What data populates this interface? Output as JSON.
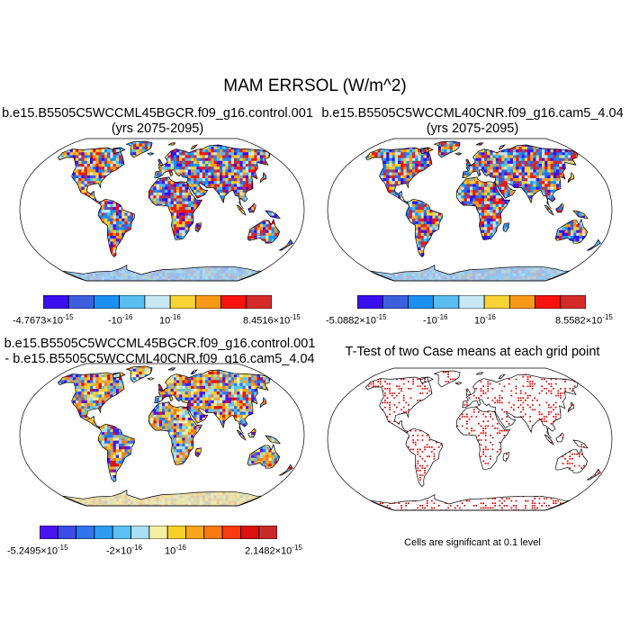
{
  "figure_title": "MAM ERRSOL (W/m^2)",
  "panels": [
    {
      "title_line1": "b.e15.B5505C5WCCML45BGCR.f09_g16.control.001",
      "title_line2": "(yrs 2075-2095)",
      "colorbar": {
        "colors": [
          "#3a0ff0",
          "#3b5fdd",
          "#1a90f2",
          "#59bdf0",
          "#c8e8f5",
          "#f7d335",
          "#f79a1a",
          "#f7120e",
          "#d42a2a"
        ],
        "labels": [
          "-4.7673×10",
          "-10",
          "10",
          "8.4516×10"
        ],
        "exponents": [
          "-15",
          "-16",
          "-16",
          "-15"
        ]
      }
    },
    {
      "title_line1": "b.e15.B5505C5WCCML40CNR.f09_g16.cam5_4.04",
      "title_line2": "(yrs 2075-2095)",
      "colorbar": {
        "colors": [
          "#3a0ff0",
          "#3b5fdd",
          "#1a90f2",
          "#59bdf0",
          "#c8e8f5",
          "#f7d335",
          "#f79a1a",
          "#f7120e",
          "#d42a2a"
        ],
        "labels": [
          "-5.0882×10",
          "-10",
          "10",
          "8.5582×10"
        ],
        "exponents": [
          "-15",
          "-16",
          "-16",
          "-15"
        ]
      }
    },
    {
      "title_line1": "b.e15.B5505C5WCCML45BGCR.f09_g16.control.001",
      "title_line2": "- b.e15.B5505C5WCCML40CNR.f09_g16.cam5_4.04",
      "colorbar": {
        "colors": [
          "#4a14f2",
          "#3a4de6",
          "#2f74ea",
          "#2e9cf0",
          "#5ac2f2",
          "#a9dff5",
          "#f5f0a0",
          "#f7d02c",
          "#f7a51b",
          "#f77a13",
          "#f73a10",
          "#dd1010",
          "#c82a2a"
        ],
        "labels": [
          "-5.2495×10",
          "-2×10",
          "10",
          "2.1482×10"
        ],
        "exponents": [
          "-15",
          "-16",
          "-16",
          "-15"
        ]
      }
    },
    {
      "title_line1": "T-Test of two Case means at each grid point",
      "note": "Cells are significant at 0.1 level"
    }
  ],
  "colors": {
    "land_mix_1": [
      "#3a0ff0",
      "#3b5fdd",
      "#1a90f2",
      "#59bdf0",
      "#c8e8f5",
      "#f7d335",
      "#f79a1a",
      "#f7120e",
      "#d42a2a"
    ],
    "land_mix_diff": [
      "#2f74ea",
      "#5ac2f2",
      "#a9dff5",
      "#f5f0a0",
      "#f7d02c",
      "#f7a51b",
      "#f77a13",
      "#dd1010",
      "#4a14f2",
      "#c8b060"
    ],
    "significance": "#dd0000",
    "coast": "#000000"
  }
}
